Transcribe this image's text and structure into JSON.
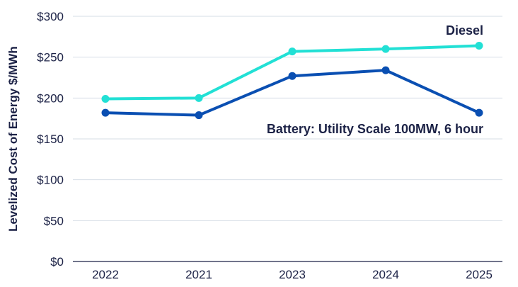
{
  "chart_data": {
    "type": "line",
    "categories": [
      "2022",
      "2021",
      "2023",
      "2024",
      "2025"
    ],
    "series": [
      {
        "name": "Diesel",
        "values": [
          199,
          200,
          257,
          260,
          264
        ],
        "color": "#22e0d5"
      },
      {
        "name": "Battery: Utility Scale 100MW, 6 hour",
        "values": [
          182,
          179,
          227,
          234,
          182
        ],
        "color": "#0a4fb2"
      }
    ],
    "ylabel": "Levelized Cost of Energy $/MWh",
    "ylim": [
      0,
      300
    ],
    "yticks": [
      0,
      50,
      100,
      150,
      200,
      250,
      300
    ],
    "ytick_labels": [
      "$0",
      "$50",
      "$100",
      "$150",
      "$200",
      "$250",
      "$300"
    ],
    "grid": true,
    "legend": "inline labels"
  }
}
